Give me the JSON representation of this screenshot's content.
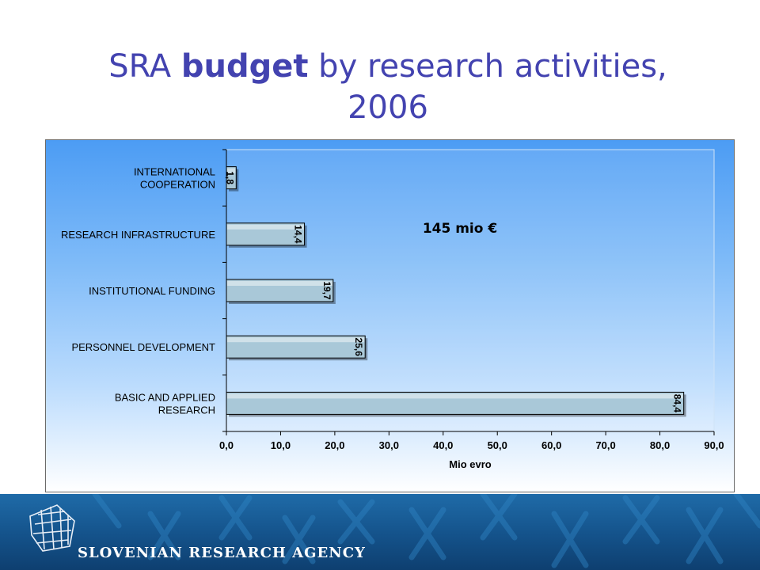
{
  "title": {
    "part1": "SRA ",
    "bold": "budget",
    "part2": " by research activities,",
    "line2": "2006"
  },
  "annotation": "145 mio €",
  "footer": {
    "agency": "SLOVENIAN RESEARCH AGENCY"
  },
  "colors": {
    "title": "#4343b0",
    "bar_fill": "#a9c8d8",
    "footer": "#14528a"
  },
  "chart_data": {
    "type": "bar",
    "orientation": "horizontal",
    "categories": [
      [
        "INTERNATIONAL",
        "COOPERATION"
      ],
      [
        "RESEARCH INFRASTRUCTURE"
      ],
      [
        "INSTITUTIONAL FUNDING"
      ],
      [
        "PERSONNEL DEVELOPMENT"
      ],
      [
        "BASIC AND APPLIED",
        "RESEARCH"
      ]
    ],
    "values": [
      1.8,
      14.4,
      19.7,
      25.6,
      84.4
    ],
    "value_labels": [
      "1,8",
      "14,4",
      "19,7",
      "25,6",
      "84,4"
    ],
    "xlabel": "Mio evro",
    "xlim": [
      0,
      90
    ],
    "xticks": [
      "0,0",
      "10,0",
      "20,0",
      "30,0",
      "40,0",
      "50,0",
      "60,0",
      "70,0",
      "80,0",
      "90,0"
    ],
    "grid": false,
    "legend": "none"
  }
}
